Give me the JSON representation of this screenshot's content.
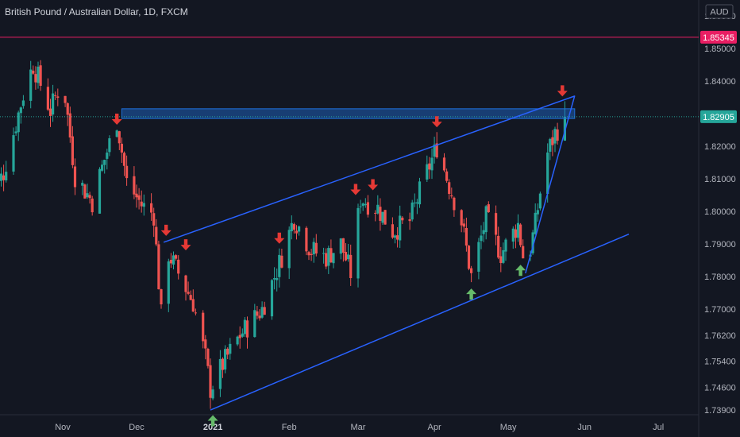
{
  "symbol_title": "British Pound / Australian Dollar, 1D, FXCM",
  "currency_label": "AUD",
  "colors": {
    "background": "#131722",
    "up": "#26a69a",
    "down": "#ef5350",
    "trendline": "#2962ff",
    "zone": "#1e6fd9",
    "arrow_down": "#e53935",
    "arrow_up": "#66bb6a",
    "high_line": "#e91e63",
    "current_tag": "#26a69a"
  },
  "chart_data": {
    "type": "candlestick",
    "title": "British Pound / Australian Dollar, 1D, FXCM",
    "ylabel": "AUD",
    "ylim": [
      1.7335,
      1.8625
    ],
    "y_ticks": [
      "1.73900",
      "1.74600",
      "1.75400",
      "1.76200",
      "1.77000",
      "1.78000",
      "1.79000",
      "1.80000",
      "1.81000",
      "1.82000",
      "1.83000",
      "1.84000",
      "1.85000",
      "1.86000"
    ],
    "x_labels": [
      {
        "label": "Nov",
        "date": "2020-11-01",
        "bold": false
      },
      {
        "label": "Dec",
        "date": "2020-12-01",
        "bold": false
      },
      {
        "label": "2021",
        "date": "2021-01-01",
        "bold": true
      },
      {
        "label": "Feb",
        "date": "2021-02-01",
        "bold": false
      },
      {
        "label": "Mar",
        "date": "2021-03-01",
        "bold": false
      },
      {
        "label": "Apr",
        "date": "2021-04-01",
        "bold": false
      },
      {
        "label": "May",
        "date": "2021-05-01",
        "bold": false
      },
      {
        "label": "Jun",
        "date": "2021-06-01",
        "bold": false
      },
      {
        "label": "Jul",
        "date": "2021-07-01",
        "bold": false
      }
    ],
    "price_tags": [
      {
        "label": "1.85345",
        "value": 1.85345,
        "kind": "high"
      },
      {
        "label": "1.82905",
        "value": 1.82905,
        "kind": "last"
      }
    ],
    "resistance_zone": {
      "from": "2020-11-25",
      "to": "2021-05-28",
      "low": 1.8285,
      "high": 1.8315
    },
    "trendlines": [
      {
        "name": "upper channel",
        "points": [
          [
            "2020-12-12",
            1.7905
          ],
          [
            "2021-05-28",
            1.8354
          ]
        ]
      },
      {
        "name": "lower channel",
        "points": [
          [
            "2020-12-31",
            1.739
          ],
          [
            "2021-06-19",
            1.793
          ]
        ]
      },
      {
        "name": "steep support",
        "points": [
          [
            "2021-05-08",
            1.781
          ],
          [
            "2021-05-28",
            1.8355
          ]
        ]
      }
    ],
    "arrows_down": [
      "2020-11-23",
      "2020-12-13",
      "2020-12-21",
      "2021-01-28",
      "2021-02-28",
      "2021-03-07",
      "2021-04-02",
      "2021-05-23"
    ],
    "arrows_up": [
      "2021-01-01",
      "2021-04-16",
      "2021-05-06"
    ],
    "path": [
      [
        "2020-10-01",
        1.8
      ],
      [
        "2020-10-08",
        1.812
      ],
      [
        "2020-10-16",
        1.836
      ],
      [
        "2020-10-20",
        1.845
      ],
      [
        "2020-10-27",
        1.831
      ],
      [
        "2020-11-01",
        1.841
      ],
      [
        "2020-11-06",
        1.811
      ],
      [
        "2020-11-13",
        1.803
      ],
      [
        "2020-11-18",
        1.816
      ],
      [
        "2020-11-23",
        1.828
      ],
      [
        "2020-11-27",
        1.809
      ],
      [
        "2020-12-03",
        1.802
      ],
      [
        "2020-12-08",
        1.799
      ],
      [
        "2020-12-11",
        1.768
      ],
      [
        "2020-12-14",
        1.787
      ],
      [
        "2020-12-20",
        1.778
      ],
      [
        "2020-12-24",
        1.772
      ],
      [
        "2020-12-29",
        1.755
      ],
      [
        "2020-12-31",
        1.7455
      ],
      [
        "2021-01-05",
        1.753
      ],
      [
        "2021-01-12",
        1.762
      ],
      [
        "2021-01-21",
        1.77
      ],
      [
        "2021-01-28",
        1.784
      ],
      [
        "2021-02-03",
        1.798
      ],
      [
        "2021-02-10",
        1.788
      ],
      [
        "2021-02-16",
        1.786
      ],
      [
        "2021-02-22",
        1.79
      ],
      [
        "2021-02-26",
        1.781
      ],
      [
        "2021-03-02",
        1.804
      ],
      [
        "2021-03-09",
        1.801
      ],
      [
        "2021-03-15",
        1.794
      ],
      [
        "2021-03-22",
        1.797
      ],
      [
        "2021-03-27",
        1.808
      ],
      [
        "2021-04-02",
        1.82
      ],
      [
        "2021-04-07",
        1.808
      ],
      [
        "2021-04-12",
        1.797
      ],
      [
        "2021-04-16",
        1.78
      ],
      [
        "2021-04-22",
        1.798
      ],
      [
        "2021-04-28",
        1.787
      ],
      [
        "2021-05-05",
        1.796
      ],
      [
        "2021-05-08",
        1.7815
      ],
      [
        "2021-05-12",
        1.796
      ],
      [
        "2021-05-16",
        1.816
      ],
      [
        "2021-05-20",
        1.824
      ],
      [
        "2021-05-24",
        1.829
      ]
    ]
  }
}
